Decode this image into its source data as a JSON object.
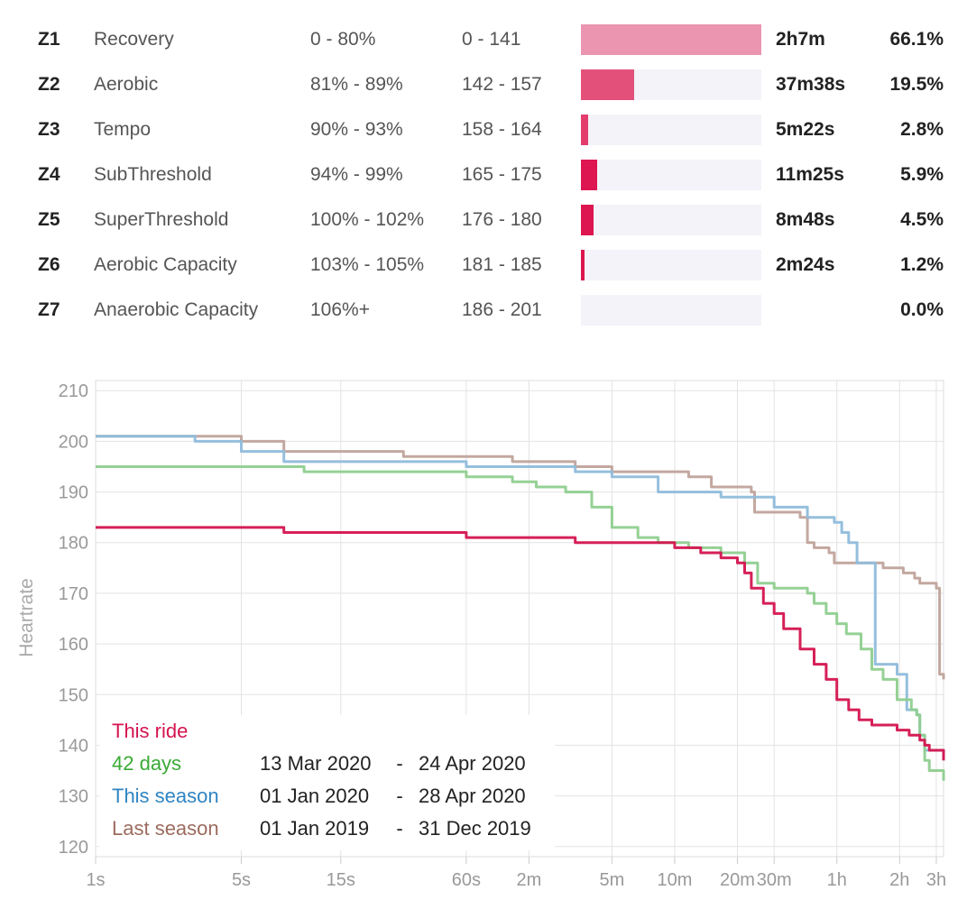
{
  "zones": [
    {
      "id": "Z1",
      "name": "Recovery",
      "pct": "0 - 80%",
      "bpm": "0 - 141",
      "time": "2h7m",
      "share": "66.1%",
      "fraction": 1.0,
      "color": "#eb95b1"
    },
    {
      "id": "Z2",
      "name": "Aerobic",
      "pct": "81% - 89%",
      "bpm": "142 - 157",
      "time": "37m38s",
      "share": "19.5%",
      "fraction": 0.295,
      "color": "#e3517b"
    },
    {
      "id": "Z3",
      "name": "Tempo",
      "pct": "90% - 93%",
      "bpm": "158 - 164",
      "time": "5m22s",
      "share": "2.8%",
      "fraction": 0.042,
      "color": "#e33c6c"
    },
    {
      "id": "Z4",
      "name": "SubThreshold",
      "pct": "94% - 99%",
      "bpm": "165 - 175",
      "time": "11m25s",
      "share": "5.9%",
      "fraction": 0.09,
      "color": "#dd1550"
    },
    {
      "id": "Z5",
      "name": "SuperThreshold",
      "pct": "100% - 102%",
      "bpm": "176 - 180",
      "time": "8m48s",
      "share": "4.5%",
      "fraction": 0.07,
      "color": "#dd1550"
    },
    {
      "id": "Z6",
      "name": "Aerobic Capacity",
      "pct": "103% - 105%",
      "bpm": "181 - 185",
      "time": "2m24s",
      "share": "1.2%",
      "fraction": 0.019,
      "color": "#dd1550"
    },
    {
      "id": "Z7",
      "name": "Anaerobic Capacity",
      "pct": "106%+",
      "bpm": "186 - 201",
      "time": "",
      "share": "0.0%",
      "fraction": 0.0,
      "color": "#dd1550"
    }
  ],
  "chart_data": {
    "type": "line",
    "ylabel": "Heartrate",
    "xlabel": "",
    "x_scale": "log",
    "x_unit": "seconds",
    "xlim_seconds": [
      1,
      11700
    ],
    "ylim": [
      118,
      212
    ],
    "y_ticks": [
      120,
      130,
      140,
      150,
      160,
      170,
      180,
      190,
      200,
      210
    ],
    "x_ticks": [
      {
        "label": "1s",
        "seconds": 1
      },
      {
        "label": "5s",
        "seconds": 5
      },
      {
        "label": "15s",
        "seconds": 15
      },
      {
        "label": "60s",
        "seconds": 60
      },
      {
        "label": "2m",
        "seconds": 120
      },
      {
        "label": "5m",
        "seconds": 300
      },
      {
        "label": "10m",
        "seconds": 600
      },
      {
        "label": "20m",
        "seconds": 1200
      },
      {
        "label": "30m",
        "seconds": 1800
      },
      {
        "label": "1h",
        "seconds": 3600
      },
      {
        "label": "2h",
        "seconds": 7200
      },
      {
        "label": "3h",
        "seconds": 10800
      }
    ],
    "grid": true,
    "legend_placement": "bottom-left",
    "series": [
      {
        "name": "Last season",
        "dates": [
          "01 Jan 2019",
          "31 Dec 2019"
        ],
        "color": "#c0a39b",
        "x": [
          1,
          5,
          8,
          30,
          60,
          100,
          200,
          300,
          500,
          700,
          900,
          1400,
          1450,
          2400,
          2600,
          2800,
          3300,
          3500,
          4000,
          4500,
          6000,
          7500,
          8500,
          9000,
          10000,
          10800,
          11200,
          11700
        ],
        "y": [
          201,
          200,
          198,
          197,
          197,
          196,
          195,
          194,
          194,
          193,
          191,
          190,
          186,
          185,
          180,
          179,
          178,
          176,
          176,
          176,
          175,
          174,
          173,
          172,
          172,
          171,
          154,
          153
        ]
      },
      {
        "name": "This season",
        "dates": [
          "01 Jan 2020",
          "28 Apr 2020"
        ],
        "color": "#8fbcdb",
        "x": [
          1,
          3,
          5,
          8,
          15,
          60,
          100,
          200,
          300,
          500,
          700,
          1000,
          1200,
          1800,
          2600,
          3500,
          3800,
          4100,
          4500,
          5300,
          5500,
          6500,
          7000,
          7800,
          8200,
          8700,
          9000,
          9500,
          10500,
          11700
        ],
        "y": [
          201,
          200,
          198,
          196,
          196,
          195,
          195,
          194,
          193,
          190,
          190,
          189,
          189,
          187,
          185,
          184,
          182,
          180,
          176,
          176,
          156,
          156,
          154,
          147,
          147,
          146,
          142,
          139,
          139,
          137
        ]
      },
      {
        "name": "42 days",
        "dates": [
          "13 Mar 2020",
          "24 Apr 2020"
        ],
        "color": "#8fcf8f",
        "x": [
          1,
          10,
          60,
          100,
          130,
          180,
          240,
          300,
          400,
          500,
          700,
          1000,
          1300,
          1500,
          1800,
          2600,
          2800,
          3200,
          3600,
          4000,
          4700,
          5300,
          6000,
          7000,
          8200,
          8700,
          9000,
          9500,
          10000,
          10500,
          11700
        ],
        "y": [
          195,
          194,
          193,
          192,
          191,
          190,
          187,
          183,
          181,
          180,
          179,
          178,
          176,
          172,
          171,
          170,
          168,
          166,
          164,
          162,
          159,
          155,
          153,
          149,
          147,
          146,
          142,
          137,
          135,
          135,
          133
        ]
      },
      {
        "name": "This ride",
        "dates": [],
        "color": "#d4144f",
        "x": [
          1,
          8,
          60,
          120,
          200,
          400,
          600,
          800,
          1000,
          1200,
          1300,
          1400,
          1600,
          1800,
          2000,
          2400,
          2800,
          3200,
          3600,
          4100,
          4600,
          5300,
          6000,
          7000,
          8000,
          9000,
          9500,
          10000,
          10500,
          11700
        ],
        "y": [
          183,
          182,
          181,
          181,
          180,
          180,
          179,
          178,
          177,
          176,
          174,
          171,
          168,
          166,
          163,
          159,
          156,
          153,
          149,
          147,
          145,
          144,
          144,
          143,
          142,
          141,
          140,
          139,
          139,
          137
        ]
      }
    ]
  }
}
